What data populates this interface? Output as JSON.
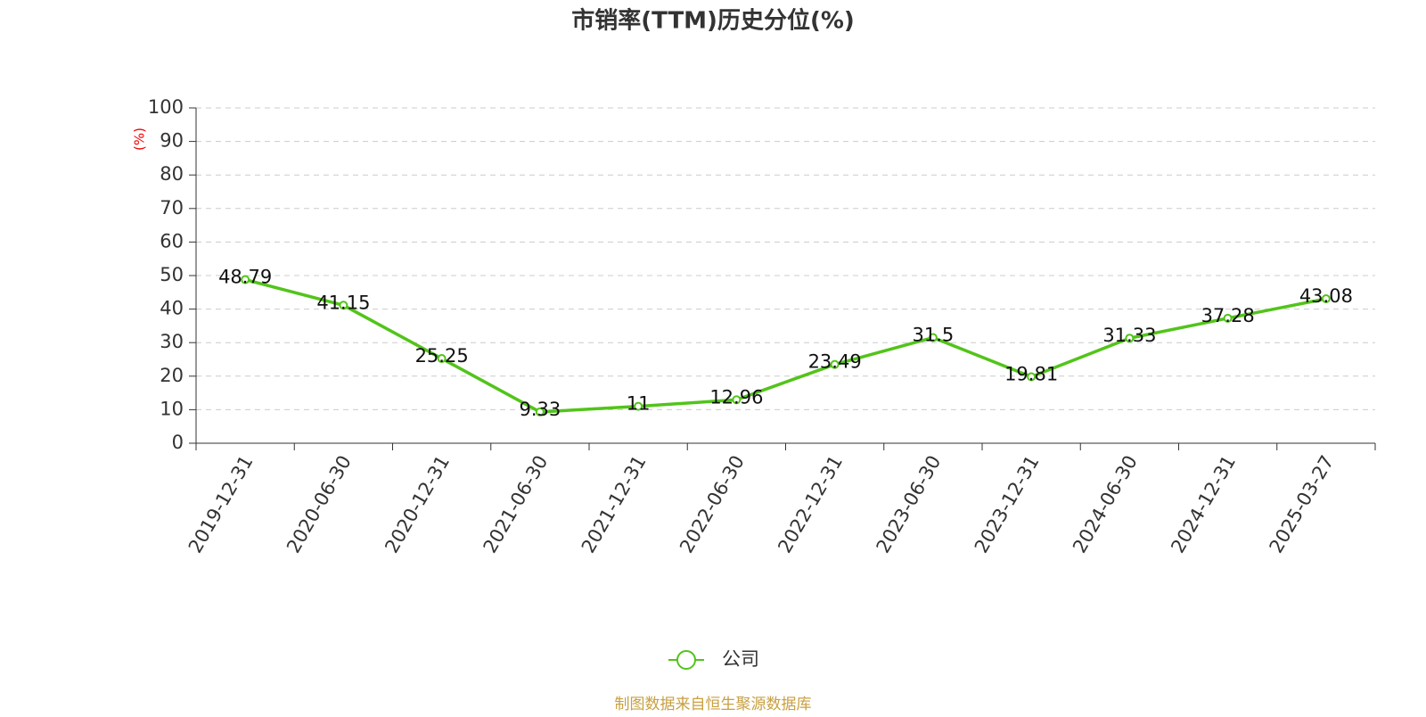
{
  "chart_data": {
    "type": "line",
    "title": "市销率(TTM)历史分位(%)",
    "y_label": "(%)",
    "source": "制图数据来自恒生聚源数据库",
    "categories": [
      "2019-12-31",
      "2020-06-30",
      "2020-12-31",
      "2021-06-30",
      "2021-12-31",
      "2022-06-30",
      "2022-12-31",
      "2023-06-30",
      "2023-12-31",
      "2024-06-30",
      "2024-12-31",
      "2025-03-27"
    ],
    "series": [
      {
        "name": "公司",
        "color": "#52c41a",
        "values": [
          48.79,
          41.15,
          25.25,
          9.33,
          11,
          12.96,
          23.49,
          31.5,
          19.81,
          31.33,
          37.28,
          43.08
        ]
      }
    ],
    "ylim": [
      0,
      100
    ],
    "yticks": [
      0,
      10,
      20,
      30,
      40,
      50,
      60,
      70,
      80,
      90,
      100
    ],
    "grid": true,
    "legend": "bottom"
  }
}
